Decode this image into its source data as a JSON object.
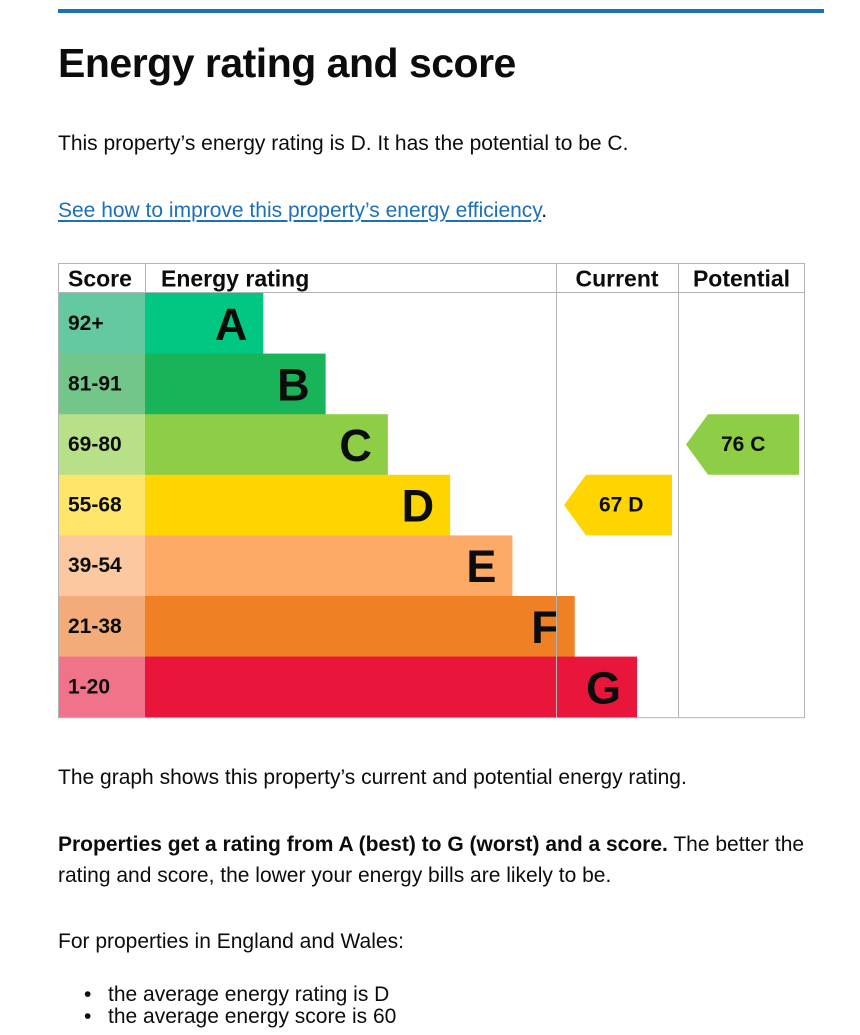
{
  "heading": "Energy rating and score",
  "intro": "This property’s energy rating is D. It has the potential to be C.",
  "link": {
    "text": "See how to improve this property’s energy efficiency",
    "suffix": "."
  },
  "chart_data": {
    "type": "bar",
    "headers": {
      "score": "Score",
      "rating": "Energy rating",
      "current": "Current",
      "potential": "Potential"
    },
    "bands": [
      {
        "score": "92+",
        "letter": "A",
        "width_fraction": 0.19,
        "bar_color": "#00c781",
        "score_bg": "#64c8a0"
      },
      {
        "score": "81-91",
        "letter": "B",
        "width_fraction": 0.29,
        "bar_color": "#19b459",
        "score_bg": "#73c68a"
      },
      {
        "score": "69-80",
        "letter": "C",
        "width_fraction": 0.39,
        "bar_color": "#8dce46",
        "score_bg": "#b8e088"
      },
      {
        "score": "55-68",
        "letter": "D",
        "width_fraction": 0.49,
        "bar_color": "#ffd500",
        "score_bg": "#ffe66b"
      },
      {
        "score": "39-54",
        "letter": "E",
        "width_fraction": 0.59,
        "bar_color": "#fcaa65",
        "score_bg": "#fcc8a0"
      },
      {
        "score": "21-38",
        "letter": "F",
        "width_fraction": 0.69,
        "bar_color": "#ef8023",
        "score_bg": "#f3ab79"
      },
      {
        "score": "1-20",
        "letter": "G",
        "width_fraction": 0.79,
        "bar_color": "#e9153b",
        "score_bg": "#f0738a"
      }
    ],
    "current": {
      "score": 67,
      "letter": "D",
      "label": "67  D",
      "band_index": 3,
      "color": "#ffd500"
    },
    "potential": {
      "score": 76,
      "letter": "C",
      "label": "76  C",
      "band_index": 2,
      "color": "#8dce46"
    }
  },
  "graph_text": "The graph shows this property’s current and potential energy rating.",
  "properties_bold": "Properties get a rating from A (best) to G (worst) and a score.",
  "properties_rest": " The better the rating and score, the lower your energy bills are likely to be.",
  "england_wales": "For properties in England and Wales:",
  "bullets": [
    "the average energy rating is D",
    "the average energy score is 60"
  ]
}
